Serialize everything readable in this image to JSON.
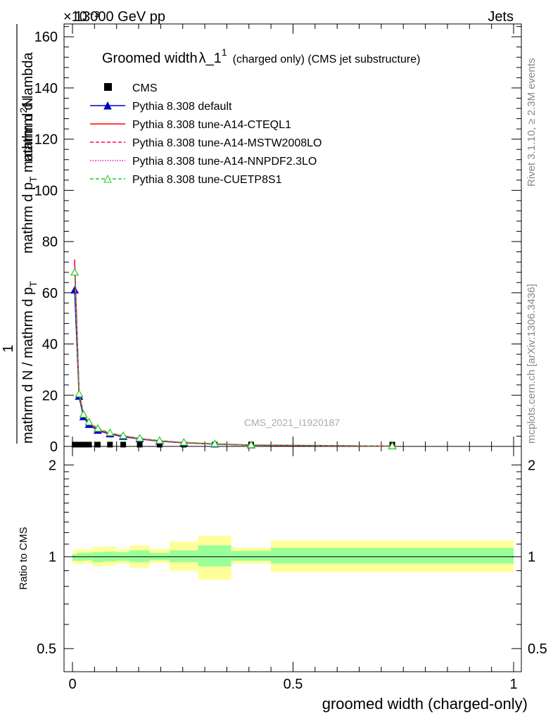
{
  "header": {
    "left_text": "13000 GeV pp",
    "right_text": "Jets",
    "exponent_label": "×10⁻³"
  },
  "side_labels": {
    "rivet": "Rivet 3.1.10, ≥ 2.3M events",
    "mcplots": "mcplots.cern.ch [arXiv:1306.3436]"
  },
  "title": {
    "main": "Groomed width",
    "lambda": "λ_1",
    "sup": "1",
    "suffix": "(charged only) (CMS jet substructure)"
  },
  "watermark": "CMS_2021_I1920187",
  "axes": {
    "y_main_label_num": "1",
    "y_main_label_den": "mathrm d N / mathrm d p",
    "y_main_label_den_sub": "T",
    "y_main_label_top": "mathrm d",
    "y_main_label_top_sup": "2",
    "y_main_label_N": "N",
    "y_main_label_top2": "mathrm d p",
    "y_main_label_top2_sub": "T",
    "y_main_label_top3": " mathrm d lambda",
    "y_ratio_label": "Ratio to CMS",
    "x_label": "groomed width (charged-only)"
  },
  "colors": {
    "cms": "#000000",
    "default": "#0000cc",
    "cteql1": "#ff0000",
    "mstw": "#ff0066",
    "nnpdf": "#ff00cc",
    "cuetp8s1": "#22cc22",
    "band_inner": "#99ff99",
    "band_outer": "#ffff99"
  },
  "chart_data": {
    "type": "line",
    "x_range": [
      0,
      1
    ],
    "main_y_range": [
      0,
      165
    ],
    "main_y_ticks": [
      "0",
      "20",
      "40",
      "60",
      "80",
      "100",
      "120",
      "140",
      "160"
    ],
    "ratio_y_range": [
      0.42,
      2.3
    ],
    "ratio_y_scale": "log",
    "ratio_y_ticks": [
      "0.5",
      "1",
      "2"
    ],
    "x_ticks": [
      "0",
      "0.5",
      "1"
    ],
    "bins": [
      [
        0,
        0.01
      ],
      [
        0.01,
        0.02
      ],
      [
        0.02,
        0.03
      ],
      [
        0.03,
        0.045
      ],
      [
        0.045,
        0.07
      ],
      [
        0.07,
        0.1
      ],
      [
        0.1,
        0.13
      ],
      [
        0.13,
        0.175
      ],
      [
        0.175,
        0.22
      ],
      [
        0.22,
        0.285
      ],
      [
        0.285,
        0.36
      ],
      [
        0.36,
        0.45
      ],
      [
        0.45,
        1.0
      ]
    ],
    "series": [
      {
        "name": "CMS",
        "style": "marker-square",
        "values": [
          0.7,
          0.7,
          0.7,
          0.7,
          0.7,
          0.7,
          0.7,
          0.7,
          0.7,
          0.7,
          0.7,
          0.7,
          0.7
        ]
      },
      {
        "name": "Pythia 8.308 default",
        "style": "line-triangle",
        "values": [
          61,
          19.5,
          11.5,
          8.5,
          6.2,
          4.8,
          3.8,
          2.9,
          2.0,
          1.4,
          0.9,
          0.5,
          0.12
        ]
      },
      {
        "name": "Pythia 8.308 tune-A14-CTEQL1",
        "style": "solid",
        "values": [
          73,
          21,
          12.5,
          9,
          6.5,
          5,
          4,
          3,
          2.1,
          1.45,
          0.95,
          0.5,
          0.12
        ]
      },
      {
        "name": "Pythia 8.308 tune-A14-MSTW2008LO",
        "style": "dashed",
        "values": [
          72,
          21,
          12.5,
          9,
          6.5,
          5,
          4,
          3,
          2.1,
          1.45,
          0.95,
          0.5,
          0.12
        ]
      },
      {
        "name": "Pythia 8.308 tune-A14-NNPDF2.3LO",
        "style": "dotted",
        "values": [
          71,
          21,
          12.5,
          9,
          6.5,
          5,
          4,
          3,
          2.1,
          1.45,
          0.95,
          0.5,
          0.12
        ]
      },
      {
        "name": "Pythia 8.308 tune-CUETP8S1",
        "style": "dashed-open-triangle",
        "values": [
          68,
          20.5,
          12.5,
          9.5,
          7,
          5.3,
          4.2,
          3.2,
          2.3,
          1.6,
          1.05,
          0.6,
          0.15
        ]
      }
    ],
    "ratio_bands": {
      "inner": [
        [
          0.97,
          1.02
        ],
        [
          0.97,
          1.03
        ],
        [
          0.97,
          1.03
        ],
        [
          0.975,
          1.03
        ],
        [
          0.96,
          1.035
        ],
        [
          0.965,
          1.04
        ],
        [
          0.97,
          1.035
        ],
        [
          0.96,
          1.05
        ],
        [
          0.975,
          1.03
        ],
        [
          0.96,
          1.05
        ],
        [
          0.93,
          1.09
        ],
        [
          0.97,
          1.045
        ],
        [
          0.95,
          1.07
        ]
      ],
      "outer": [
        [
          0.95,
          1.05
        ],
        [
          0.945,
          1.06
        ],
        [
          0.95,
          1.06
        ],
        [
          0.95,
          1.055
        ],
        [
          0.93,
          1.075
        ],
        [
          0.935,
          1.08
        ],
        [
          0.95,
          1.06
        ],
        [
          0.92,
          1.09
        ],
        [
          0.955,
          1.06
        ],
        [
          0.9,
          1.12
        ],
        [
          0.84,
          1.17
        ],
        [
          0.95,
          1.07
        ],
        [
          0.89,
          1.13
        ]
      ]
    }
  }
}
